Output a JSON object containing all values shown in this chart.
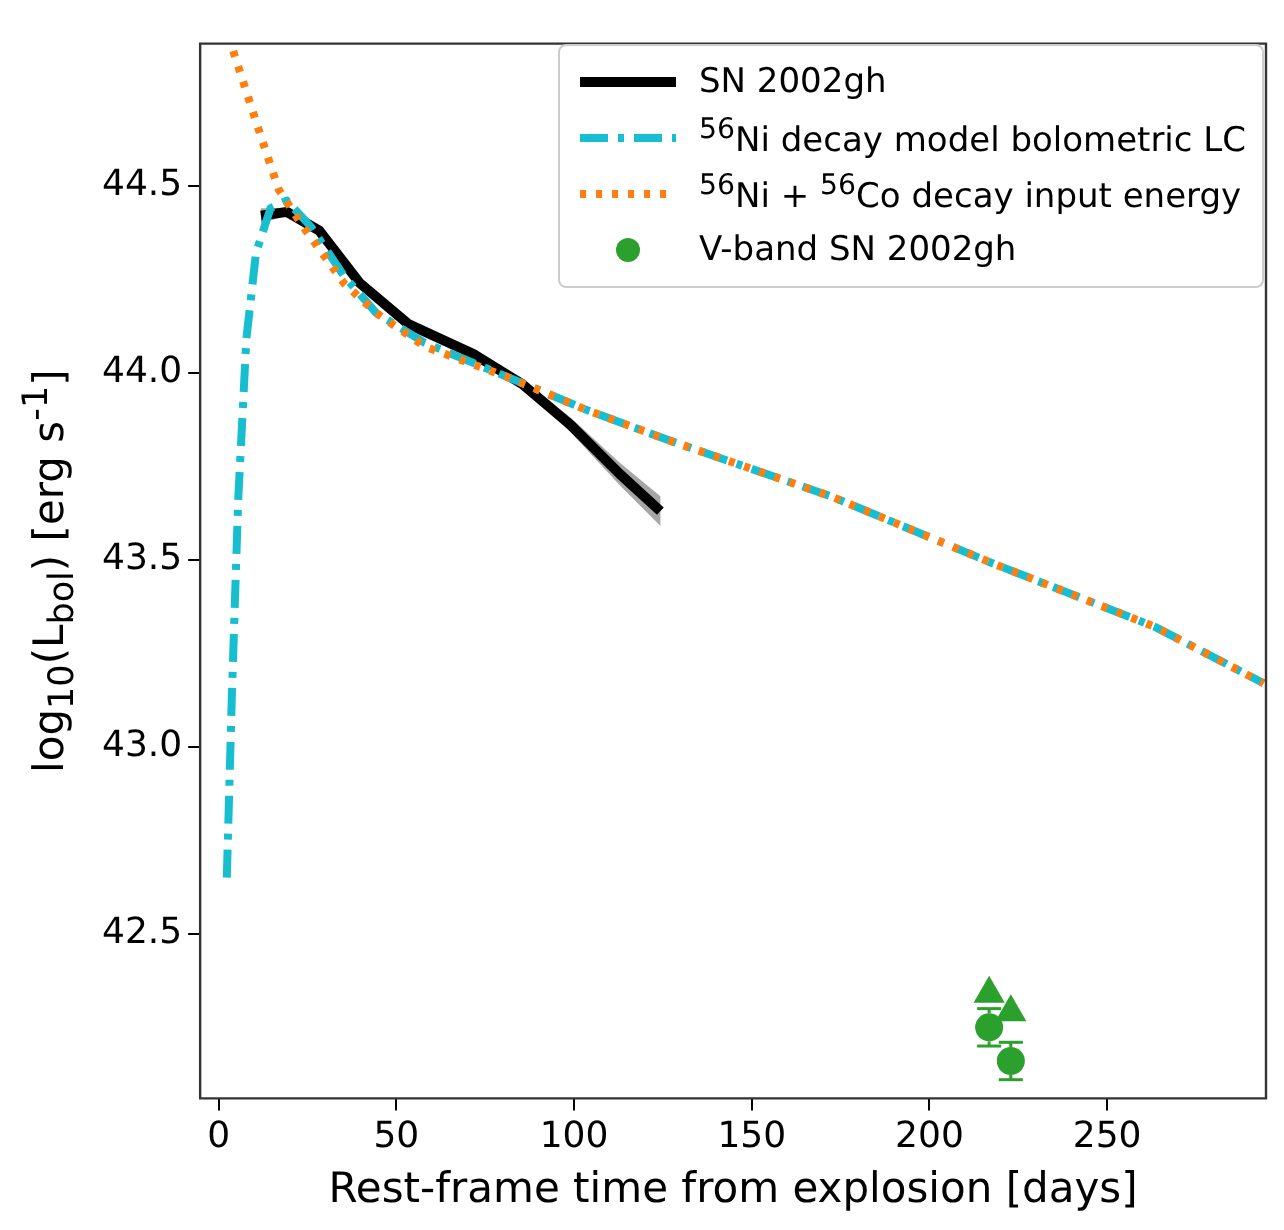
{
  "chart_data": {
    "type": "line",
    "xlabel": "Rest-frame time from explosion [days]",
    "ylabel": "log$_{10}$(L$_{bol}$) [erg s$^{-1}$]",
    "xlim": [
      -5.2,
      294.7
    ],
    "ylim": [
      42.06,
      44.88
    ],
    "xticks": [
      0,
      50,
      100,
      150,
      200,
      250
    ],
    "yticks": [
      42.5,
      {
        "value": 43,
        "label": "43.0"
      },
      43.5,
      {
        "value": 44,
        "label": "44.0"
      },
      44.5
    ],
    "grid": false,
    "legend": "top right",
    "series": [
      {
        "name": "SN 2002gh",
        "color": "#000000",
        "line_style": "solid",
        "marker": "none",
        "x": [
          11.9,
          19.2,
          28.3,
          39.7,
          53.4,
          71.7,
          85.4,
          99.1,
          112.8,
          124.3
        ],
        "values": [
          44.42,
          44.43,
          44.38,
          44.24,
          44.13,
          44.05,
          43.97,
          43.86,
          43.73,
          43.63
        ],
        "lower": [
          44.4,
          44.42,
          44.37,
          44.23,
          44.12,
          44.04,
          43.96,
          43.84,
          43.7,
          43.59
        ],
        "upper": [
          44.44,
          44.44,
          44.39,
          44.25,
          44.14,
          44.06,
          43.98,
          43.88,
          43.76,
          43.67
        ]
      },
      {
        "name": "$^{56}$Ni decay model bolometric LC",
        "color": "#17becf",
        "line_style": "dashed",
        "marker": "none",
        "x": [
          2.3,
          3.7,
          5.5,
          7.8,
          10.5,
          14.6,
          19.2,
          26,
          35.2,
          44.3,
          58,
          80.9,
          103.7,
          126.5,
          172.2,
          217.9,
          263.6,
          294
        ],
        "values": [
          42.65,
          43.13,
          43.66,
          44.09,
          44.32,
          44.44,
          44.46,
          44.39,
          44.26,
          44.16,
          44.08,
          43.99,
          43.9,
          43.82,
          43.67,
          43.49,
          43.32,
          43.17
        ]
      },
      {
        "name": "$^{56}$Ni + $^{56}$Co decay input energy",
        "color": "#ff7f0e",
        "line_style": "dotted",
        "marker": "none",
        "x": [
          4.1,
          12.3,
          16.9,
          23.8,
          35.2,
          44.3,
          58,
          80.9,
          103.7,
          126.5,
          172.2,
          217.9,
          263.6,
          294
        ],
        "values": [
          44.86,
          44.62,
          44.49,
          44.39,
          44.24,
          44.16,
          44.07,
          43.99,
          43.9,
          43.82,
          43.67,
          43.49,
          43.32,
          43.17
        ]
      },
      {
        "name": "V-band SN 2002gh",
        "type": "scatter",
        "color": "#2ca02c",
        "marker": "circle",
        "x": [
          216.8,
          222.9
        ],
        "values": [
          42.25,
          42.16
        ],
        "errors": [
          0.05,
          0.05
        ]
      },
      {
        "type": "scatter",
        "color": "#2ca02c",
        "marker": "triangle",
        "x": [
          216.8,
          222.9
        ],
        "values": [
          42.34,
          42.29
        ]
      }
    ]
  }
}
